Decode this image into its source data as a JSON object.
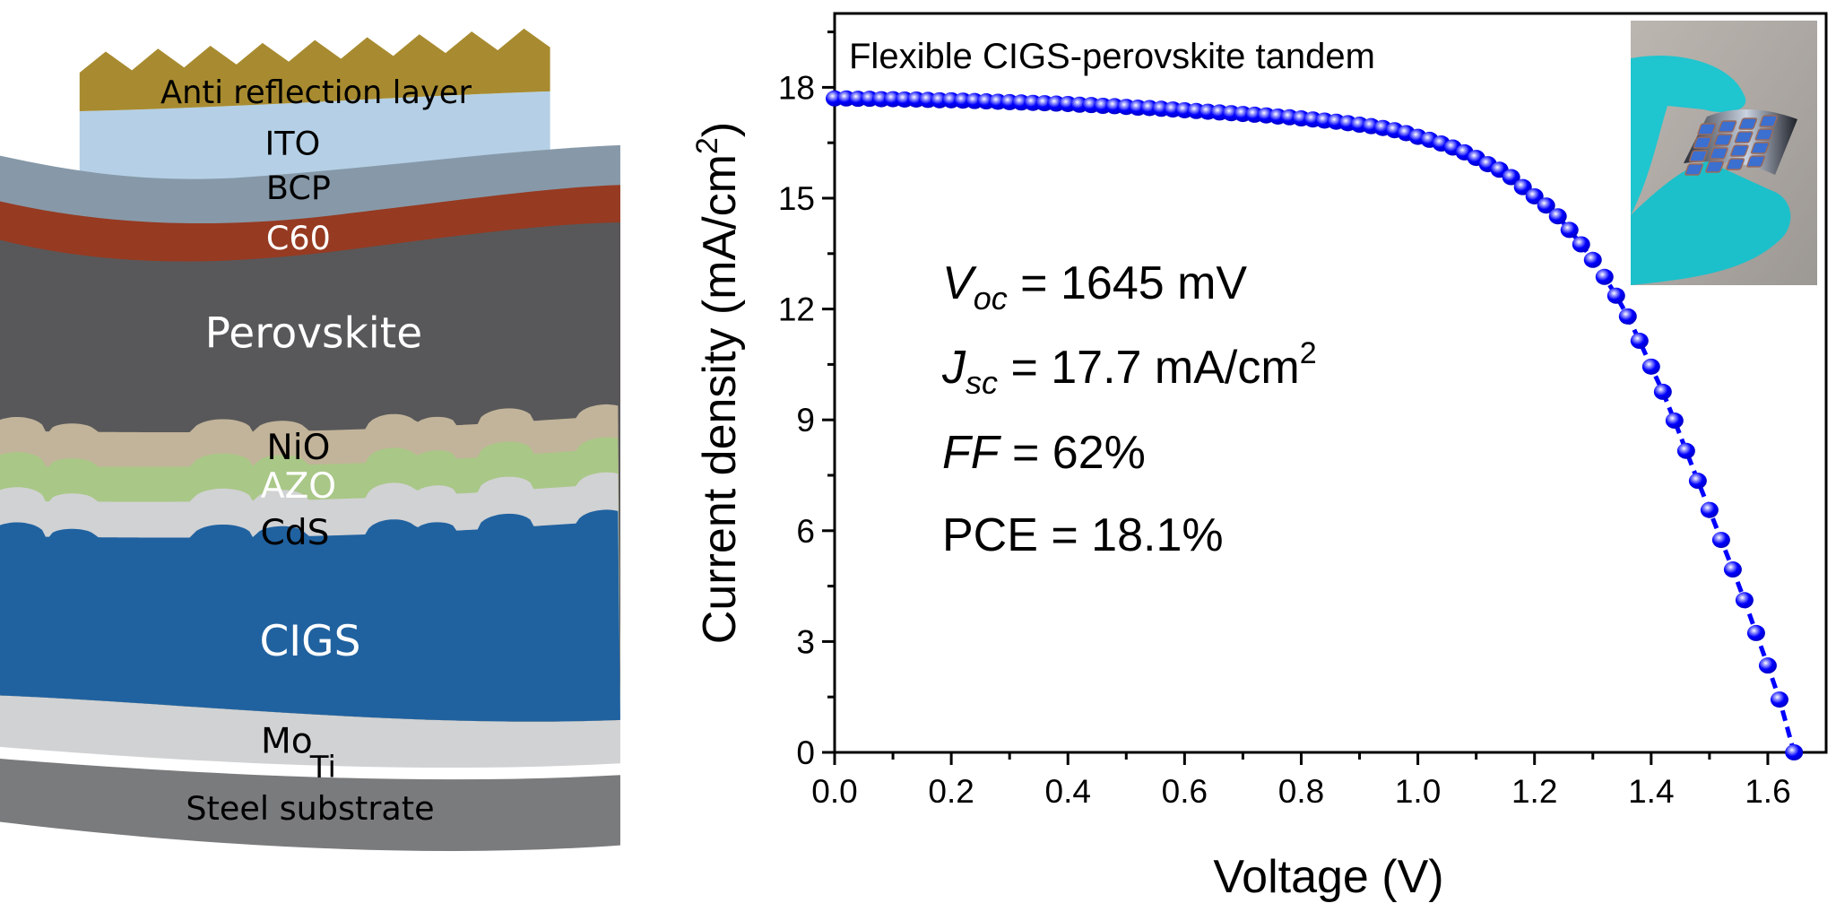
{
  "diagram": {
    "layers": [
      {
        "label": "Anti reflection layer",
        "color": "#a88b30",
        "label_color": "#000000"
      },
      {
        "label": "ITO",
        "color": "#b5d0e6",
        "label_color": "#000000"
      },
      {
        "label": "BCP",
        "color": "#8799a8",
        "label_color": "#000000"
      },
      {
        "label": "C60",
        "color": "#963a22",
        "label_color": "#ffffff"
      },
      {
        "label": "Perovskite",
        "color": "#58585a",
        "label_color": "#ffffff"
      },
      {
        "label": "NiO",
        "color": "#c2b49a",
        "label_color": "#000000"
      },
      {
        "label": "AZO",
        "color": "#a9c787",
        "label_color": "#ffffff"
      },
      {
        "label": "CdS",
        "color": "#d1d2d4",
        "label_color": "#000000"
      },
      {
        "label": "CIGS",
        "color": "#2062a0",
        "label_color": "#ffffff"
      },
      {
        "label": "Mo",
        "color": "#d1d2d4",
        "label_color": "#000000"
      },
      {
        "label": "Ti",
        "color": "#ffffff",
        "label_color": "#000000"
      },
      {
        "label": "Steel substrate",
        "color": "#7a7b7d",
        "label_color": "#000000"
      }
    ]
  },
  "chart_data": {
    "type": "line",
    "title": "Flexible CIGS-perovskite tandem",
    "xlabel": "Voltage (V)",
    "ylabel_parts": {
      "main": "Current density (mA/cm",
      "sup": "2",
      "end": ")"
    },
    "xlim": [
      0,
      1.7
    ],
    "ylim": [
      0,
      20
    ],
    "xticks": [
      "0.0",
      "0.2",
      "0.4",
      "0.6",
      "0.8",
      "1.0",
      "1.2",
      "1.4",
      "1.6"
    ],
    "yticks": [
      "0",
      "3",
      "6",
      "9",
      "12",
      "15",
      "18"
    ],
    "grid": false,
    "marker_color": "#0000ff",
    "x": [
      0.0,
      0.02,
      0.04,
      0.06,
      0.08,
      0.1,
      0.12,
      0.14,
      0.16,
      0.18,
      0.2,
      0.22,
      0.24,
      0.26,
      0.28,
      0.3,
      0.32,
      0.34,
      0.36,
      0.38,
      0.4,
      0.42,
      0.44,
      0.46,
      0.48,
      0.5,
      0.52,
      0.54,
      0.56,
      0.58,
      0.6,
      0.62,
      0.64,
      0.66,
      0.68,
      0.7,
      0.72,
      0.74,
      0.76,
      0.78,
      0.8,
      0.82,
      0.84,
      0.86,
      0.88,
      0.9,
      0.92,
      0.94,
      0.96,
      0.98,
      1.0,
      1.02,
      1.04,
      1.06,
      1.08,
      1.1,
      1.12,
      1.14,
      1.16,
      1.18,
      1.2,
      1.22,
      1.24,
      1.26,
      1.28,
      1.3,
      1.32,
      1.34,
      1.36,
      1.38,
      1.4,
      1.42,
      1.44,
      1.46,
      1.48,
      1.5,
      1.52,
      1.54,
      1.56,
      1.58,
      1.6,
      1.62,
      1.645
    ],
    "y": [
      17.7,
      17.7,
      17.69,
      17.69,
      17.68,
      17.68,
      17.67,
      17.67,
      17.66,
      17.65,
      17.65,
      17.64,
      17.63,
      17.62,
      17.61,
      17.6,
      17.59,
      17.58,
      17.57,
      17.56,
      17.55,
      17.53,
      17.52,
      17.5,
      17.49,
      17.47,
      17.45,
      17.44,
      17.42,
      17.4,
      17.38,
      17.36,
      17.34,
      17.32,
      17.3,
      17.28,
      17.26,
      17.24,
      17.21,
      17.19,
      17.16,
      17.13,
      17.1,
      17.07,
      17.03,
      16.99,
      16.95,
      16.9,
      16.84,
      16.76,
      16.66,
      16.58,
      16.48,
      16.37,
      16.24,
      16.09,
      15.92,
      15.77,
      15.57,
      15.3,
      15.05,
      14.8,
      14.51,
      14.14,
      13.75,
      13.33,
      12.87,
      12.36,
      11.8,
      11.14,
      10.44,
      9.76,
      8.98,
      8.16,
      7.35,
      6.56,
      5.75,
      4.95,
      4.12,
      3.23,
      2.35,
      1.43,
      0
    ],
    "annotations": {
      "voc": {
        "symbol": "V",
        "sub": "oc",
        "value": " = 1645 mV"
      },
      "jsc": {
        "symbol": "J",
        "sub": "sc",
        "value": " = 17.7 mA/cm",
        "sup": "2"
      },
      "ff": {
        "symbol": "FF",
        "value": " = 62%"
      },
      "pce": {
        "text": "PCE = 18.1%"
      }
    },
    "inset": {
      "content": "photo of flexible device held in cyan gloved fingers",
      "glove_color": "#1fc5cf"
    }
  }
}
